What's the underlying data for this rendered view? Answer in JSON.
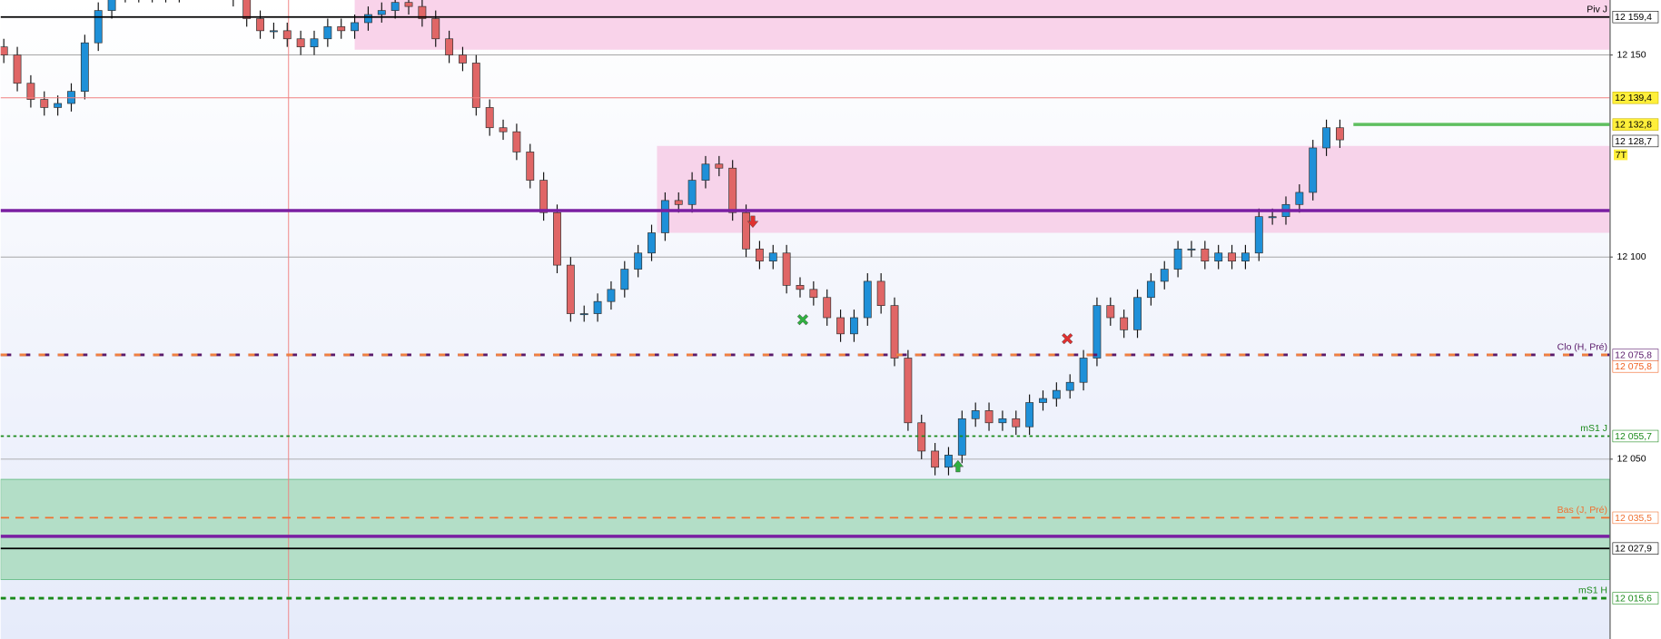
{
  "chart_data": {
    "type": "candlestick",
    "xlim": [
      -0.235,
      118.98
    ],
    "ylim": [
      12005.5,
      12163.6
    ],
    "yticks": [
      {
        "value": 12150,
        "label": "12 150"
      },
      {
        "value": 12100,
        "label": "12 100"
      },
      {
        "value": 12050,
        "label": "12 050"
      }
    ],
    "grid": true,
    "up_color": "#1e90d8",
    "down_color": "#e06666",
    "open": [
      12152,
      12150,
      12143,
      12139,
      12137,
      12138,
      12141,
      12153,
      12161,
      12165,
      12166,
      12165,
      12166,
      12165,
      12167,
      12167,
      12166,
      12166,
      12164,
      12159,
      12156,
      12156,
      12154,
      12152,
      12154,
      12157,
      12156,
      12158,
      12160,
      12161,
      12163,
      12162,
      12159,
      12154,
      12150,
      12148,
      12137,
      12132,
      12131,
      12126,
      12119,
      12111,
      12098,
      12086,
      12086,
      12089,
      12092,
      12097,
      12101,
      12106,
      12114,
      12113,
      12119,
      12123,
      12122,
      12111,
      12102,
      12099,
      12101,
      12093,
      12092,
      12090,
      12085,
      12081,
      12085,
      12094,
      12088,
      12075,
      12059,
      12052,
      12048,
      12051,
      12060,
      12062,
      12059,
      12060,
      12058,
      12064,
      12065,
      12067,
      12069,
      12075,
      12088,
      12085,
      12082,
      12090,
      12094,
      12097,
      12102,
      12102,
      12099,
      12101,
      12099,
      12101,
      12110,
      12110,
      12113,
      12116,
      12127,
      12132
    ],
    "high": [
      12154,
      12152,
      12145,
      12141,
      12140,
      12143,
      12155,
      12163,
      12167,
      12168,
      12168,
      12168,
      12168,
      12169,
      12169,
      12169,
      12168,
      12168,
      12166,
      12161,
      12158,
      12158,
      12156,
      12156,
      12159,
      12159,
      12160,
      12162,
      12163,
      12165,
      12165,
      12164,
      12161,
      12156,
      12152,
      12150,
      12139,
      12134,
      12133,
      12128,
      12121,
      12113,
      12100,
      12088,
      12091,
      12094,
      12099,
      12103,
      12108,
      12116,
      12116,
      12121,
      12125,
      12125,
      12124,
      12113,
      12104,
      12103,
      12103,
      12095,
      12094,
      12092,
      12087,
      12087,
      12096,
      12096,
      12090,
      12077,
      12061,
      12054,
      12053,
      12062,
      12064,
      12064,
      12062,
      12062,
      12066,
      12067,
      12069,
      12071,
      12077,
      12090,
      12090,
      12087,
      12092,
      12096,
      12099,
      12104,
      12104,
      12104,
      12103,
      12103,
      12103,
      12112,
      12112,
      12115,
      12118,
      12129,
      12134,
      12134
    ],
    "low": [
      12148,
      12141,
      12137,
      12135,
      12135,
      12136,
      12139,
      12151,
      12159,
      12163,
      12163,
      12163,
      12163,
      12163,
      12165,
      12164,
      12164,
      12162,
      12157,
      12154,
      12154,
      12152,
      12150,
      12150,
      12152,
      12154,
      12154,
      12156,
      12158,
      12159,
      12160,
      12157,
      12152,
      12148,
      12146,
      12135,
      12130,
      12129,
      12124,
      12117,
      12109,
      12096,
      12084,
      12084,
      12084,
      12087,
      12090,
      12095,
      12099,
      12104,
      12111,
      12111,
      12117,
      12120,
      12109,
      12100,
      12097,
      12097,
      12091,
      12090,
      12088,
      12083,
      12079,
      12079,
      12083,
      12086,
      12073,
      12057,
      12050,
      12046,
      12046,
      12049,
      12058,
      12057,
      12057,
      12056,
      12056,
      12062,
      12063,
      12065,
      12067,
      12073,
      12083,
      12080,
      12080,
      12088,
      12092,
      12095,
      12100,
      12097,
      12097,
      12097,
      12097,
      12099,
      12108,
      12108,
      12111,
      12114,
      12125,
      12127
    ],
    "close": [
      12150,
      12143,
      12139,
      12137,
      12138,
      12141,
      12153,
      12161,
      12165,
      12166,
      12165,
      12166,
      12165,
      12167,
      12167,
      12166,
      12166,
      12164,
      12159,
      12156,
      12156,
      12154,
      12152,
      12154,
      12157,
      12156,
      12158,
      12160,
      12161,
      12163,
      12162,
      12159,
      12154,
      12150,
      12148,
      12137,
      12132,
      12131,
      12126,
      12119,
      12111,
      12098,
      12086,
      12086,
      12089,
      12092,
      12097,
      12101,
      12106,
      12114,
      12113,
      12119,
      12123,
      12122,
      12111,
      12102,
      12099,
      12101,
      12093,
      12092,
      12090,
      12085,
      12081,
      12085,
      12094,
      12088,
      12075,
      12059,
      12052,
      12048,
      12051,
      12060,
      12062,
      12059,
      12060,
      12058,
      12064,
      12065,
      12067,
      12069,
      12075,
      12088,
      12085,
      12082,
      12090,
      12094,
      12097,
      12102,
      12102,
      12099,
      12101,
      12099,
      12101,
      12110,
      12110,
      12113,
      12116,
      12127,
      12132,
      12129
    ],
    "zones": [
      {
        "from": 12151.3,
        "to": 12163.6,
        "start": 26,
        "color": "#f9d3ea"
      },
      {
        "from": 12106.0,
        "to": 12127.5,
        "start": 48.4,
        "color": "#f7d3ea"
      },
      {
        "from": 12020.2,
        "to": 12045.0,
        "start": -0.235,
        "color": "#b3dec7"
      }
    ],
    "vline": {
      "x": 21.1,
      "color": "#f08080"
    },
    "levels": [
      {
        "name": "Piv J",
        "value": 12159.4,
        "label": "12 159,4",
        "color": "#000000",
        "width": 1.5,
        "dash": "",
        "text_color": "#000000",
        "bg": "#ffffff"
      },
      {
        "value": 12139.4,
        "label": "12 139,4",
        "color": "#f08080",
        "width": 0.8,
        "dash": "",
        "text_color": "#000000",
        "bg": "#ffef3a"
      },
      {
        "value": 12132.8,
        "label": "12 132,8",
        "color": "#5fbf5f",
        "width": 3,
        "dash": "",
        "text_color": "#000000",
        "bg": "#ffef3a",
        "start": 100
      },
      {
        "value": 12128.7,
        "label": "12 128,7",
        "color": "none",
        "width": 0,
        "dash": "",
        "text_color": "#000000",
        "bg": "#ffffff"
      },
      {
        "value": 12111.5,
        "color": "#7a1fa2",
        "width": 3,
        "dash": ""
      },
      {
        "name": "Clo (H, Pré)",
        "value": 12075.8,
        "label": "12 075,8",
        "color": "#5a1a6a",
        "width": 2.5,
        "dash": "10 8",
        "text_color": "#5a1a6a",
        "bg": "#ffffff"
      },
      {
        "value": 12075.8,
        "label": "12 075,8",
        "color": "#f08040",
        "width": 2.5,
        "dash": "6 12",
        "text_color": "#f06020",
        "bg": "#ffffff"
      },
      {
        "name": "mS1 J",
        "value": 12055.7,
        "label": "12 055,7",
        "color": "#1a8a1a",
        "width": 1.5,
        "dash": "3 3",
        "text_color": "#1a8a1a",
        "bg": "#ffffff"
      },
      {
        "name": "Bas (J, Pré)",
        "value": 12035.5,
        "label": "12 035,5",
        "color": "#f07030",
        "width": 1.5,
        "dash": "8 6",
        "text_color": "#f07030",
        "bg": "#ffffff"
      },
      {
        "value": 12030.9,
        "color": "#7a1fa2",
        "width": 3,
        "dash": ""
      },
      {
        "value": 12027.9,
        "label": "12 027,9",
        "color": "#000000",
        "width": 1.5,
        "dash": "",
        "text_color": "#000000",
        "bg": "#ffffff"
      },
      {
        "name": "mS1 H",
        "value": 12015.6,
        "label": "12 015,6",
        "color": "#1a8a1a",
        "width": 2.5,
        "dash": "5 4",
        "text_color": "#1a8a1a",
        "bg": "#ffffff"
      }
    ],
    "time_tag": "7T",
    "signals": [
      {
        "shape": "down",
        "x": 55.5,
        "y": 12108.6,
        "color": "#e03030"
      },
      {
        "shape": "cross",
        "x": 59.2,
        "y": 12084.5,
        "color": "#30b040"
      },
      {
        "shape": "up",
        "x": 70.7,
        "y": 12048.4,
        "color": "#30b040"
      },
      {
        "shape": "cross",
        "x": 78.8,
        "y": 12079.8,
        "color": "#e03030"
      }
    ]
  }
}
